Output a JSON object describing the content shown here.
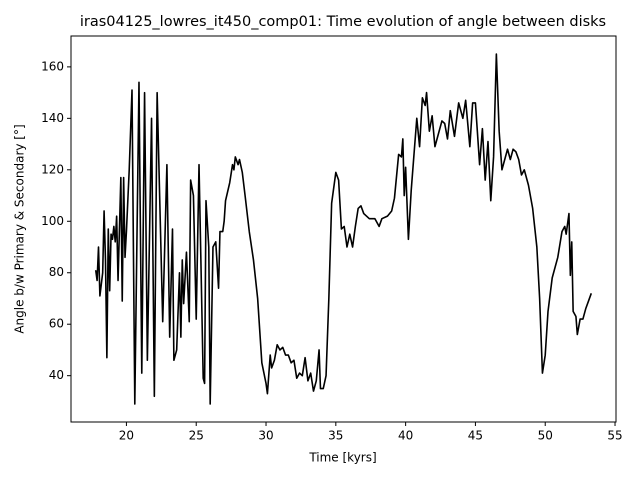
{
  "chart_data": {
    "type": "line",
    "title": "iras04125_lowres_it450_comp01: Time evolution of angle between disks",
    "x_label": "Time [kyrs]",
    "y_label": "Angle b/w Primary & Secondary [°]",
    "x": [
      17.8,
      17.9,
      18.0,
      18.1,
      18.3,
      18.4,
      18.5,
      18.6,
      18.7,
      18.8,
      18.9,
      19.0,
      19.1,
      19.2,
      19.3,
      19.4,
      19.6,
      19.7,
      19.8,
      19.9,
      20.0,
      20.2,
      20.4,
      20.6,
      20.9,
      21.1,
      21.3,
      21.5,
      21.8,
      22.0,
      22.2,
      22.6,
      22.9,
      23.1,
      23.3,
      23.4,
      23.6,
      23.8,
      23.9,
      24.0,
      24.1,
      24.3,
      24.5,
      24.6,
      24.8,
      25.0,
      25.2,
      25.5,
      25.6,
      25.7,
      25.9,
      26.0,
      26.2,
      26.4,
      26.6,
      26.7,
      26.9,
      27.0,
      27.1,
      27.4,
      27.6,
      27.7,
      27.8,
      28.0,
      28.1,
      28.3,
      28.5,
      28.8,
      29.1,
      29.4,
      29.7,
      30.0,
      30.1,
      30.3,
      30.4,
      30.6,
      30.8,
      31.0,
      31.2,
      31.4,
      31.6,
      31.8,
      32.0,
      32.2,
      32.4,
      32.6,
      32.8,
      33.0,
      33.2,
      33.4,
      33.6,
      33.8,
      33.9,
      34.1,
      34.3,
      34.5,
      34.7,
      35.0,
      35.2,
      35.4,
      35.6,
      35.8,
      36.0,
      36.2,
      36.4,
      36.6,
      36.8,
      37.0,
      37.4,
      37.8,
      38.1,
      38.3,
      38.7,
      39.0,
      39.2,
      39.5,
      39.7,
      39.8,
      39.9,
      40.0,
      40.2,
      40.4,
      40.6,
      40.8,
      41.0,
      41.2,
      41.4,
      41.5,
      41.7,
      41.9,
      42.1,
      42.3,
      42.6,
      42.8,
      43.0,
      43.2,
      43.5,
      43.8,
      44.1,
      44.3,
      44.6,
      44.8,
      45.0,
      45.3,
      45.5,
      45.7,
      45.9,
      46.1,
      46.3,
      46.5,
      46.7,
      46.9,
      47.1,
      47.3,
      47.5,
      47.7,
      47.9,
      48.1,
      48.3,
      48.5,
      48.8,
      49.1,
      49.4,
      49.6,
      49.8,
      50.0,
      50.2,
      50.5,
      50.9,
      51.2,
      51.4,
      51.5,
      51.7,
      51.8,
      51.9,
      52.0,
      52.2,
      52.3,
      52.5,
      52.7,
      52.9,
      53.1,
      53.3
    ],
    "series": [
      {
        "color": "#000000",
        "values": [
          81,
          77,
          90,
          71,
          80,
          104,
          85,
          47,
          97,
          73,
          95,
          93,
          98,
          92,
          102,
          77,
          117,
          69,
          117,
          86,
          96,
          120,
          151,
          29,
          154,
          41,
          150,
          46,
          140,
          32,
          150,
          61,
          122,
          55,
          97,
          46,
          50,
          80,
          55,
          85,
          68,
          88,
          61,
          116,
          110,
          62,
          122,
          39,
          37,
          108,
          90,
          29,
          90,
          92,
          74,
          96,
          96,
          100,
          108,
          115,
          122,
          120,
          125,
          122,
          124,
          119,
          110,
          96,
          85,
          70,
          45,
          37,
          33,
          48,
          43,
          46,
          52,
          50,
          51,
          48,
          48,
          45,
          46,
          39,
          41,
          40,
          47,
          38,
          41,
          34,
          38,
          50,
          35,
          35,
          40,
          70,
          107,
          119,
          116,
          97,
          98,
          90,
          95,
          90,
          98,
          105,
          106,
          103,
          101,
          101,
          98,
          101,
          102,
          104,
          109,
          126,
          125,
          132,
          110,
          121,
          93,
          112,
          126,
          140,
          129,
          148,
          145,
          150,
          135,
          141,
          129,
          133,
          139,
          138,
          132,
          143,
          133,
          146,
          140,
          147,
          129,
          146,
          146,
          122,
          136,
          116,
          131,
          108,
          125,
          165,
          135,
          120,
          124,
          128,
          124,
          128,
          127,
          124,
          118,
          120,
          114,
          105,
          90,
          70,
          41,
          48,
          65,
          78,
          86,
          96,
          98,
          95,
          103,
          79,
          92,
          65,
          63,
          56,
          62,
          62,
          66,
          69,
          72
        ]
      }
    ],
    "xlim": [
      16.03,
      55.07
    ],
    "xticks": [
      20,
      25,
      30,
      35,
      40,
      45,
      50,
      55
    ],
    "ylim": [
      22,
      172
    ],
    "yticks": [
      40,
      60,
      80,
      100,
      120,
      140,
      160
    ],
    "grid": false
  }
}
